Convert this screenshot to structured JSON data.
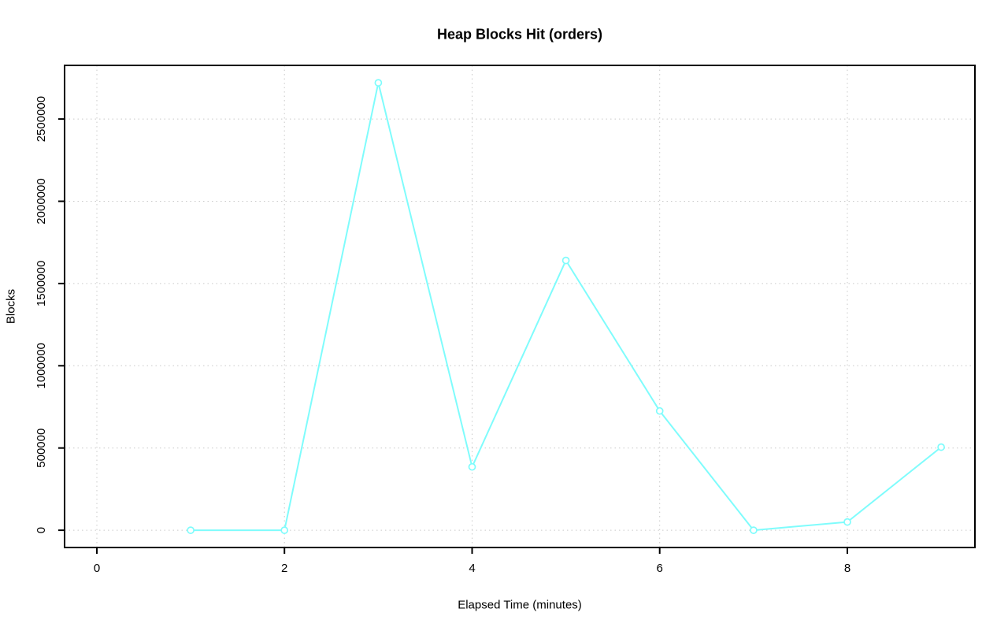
{
  "chart_data": {
    "type": "line",
    "title": "Heap Blocks Hit (orders)",
    "xlabel": "Elapsed Time (minutes)",
    "ylabel": "Blocks",
    "x": [
      1,
      2,
      3,
      4,
      5,
      6,
      7,
      8,
      9
    ],
    "values": [
      0,
      0,
      2720000,
      385000,
      1640000,
      725000,
      0,
      50000,
      505000
    ],
    "series_name": "orders heap blocks hit",
    "x_ticks": [
      0,
      2,
      4,
      6,
      8
    ],
    "x_tick_labels": [
      "0",
      "2",
      "4",
      "6",
      "8"
    ],
    "y_ticks": [
      0,
      500000,
      1000000,
      1500000,
      2000000,
      2500000
    ],
    "y_tick_labels": [
      "0",
      "500000",
      "1000000",
      "1500000",
      "2000000",
      "2500000"
    ],
    "xlim": [
      -0.344,
      9.36
    ],
    "ylim": [
      -105000,
      2826000
    ],
    "grid": true,
    "grid_style": "dotted",
    "legend": "none",
    "line_color": "#7ffcfc",
    "marker": "open-circle",
    "marker_color": "#7ffcfc",
    "grid_color": "#c9c9c9",
    "frame_color": "#000000",
    "background_color": "#ffffff"
  }
}
